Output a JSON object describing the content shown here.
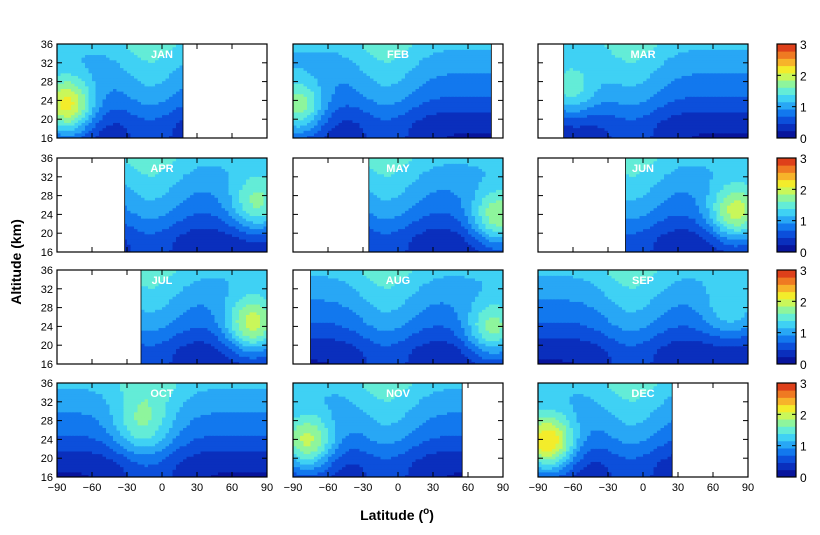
{
  "chart_data": {
    "type": "heatmap",
    "title": "",
    "xlabel": "Latitude (o)",
    "ylabel": "Altitude (km)",
    "x_ticks": [
      "−90",
      "−60",
      "−30",
      "0",
      "30",
      "60",
      "90"
    ],
    "y_ticks": [
      "16",
      "20",
      "24",
      "28",
      "32",
      "36"
    ],
    "xlim": [
      -90,
      90
    ],
    "ylim": [
      16,
      36
    ],
    "colorbar": {
      "ticks": [
        "0",
        "1",
        "2",
        "3"
      ],
      "range": [
        0,
        3
      ],
      "colors": [
        "#08159c",
        "#0a2fbd",
        "#0c4fdb",
        "#1278ee",
        "#28a7f5",
        "#3fd1f4",
        "#63ecd7",
        "#8ef59c",
        "#c9f75a",
        "#f3ec2b",
        "#f7b32a",
        "#ef7a22",
        "#de401a"
      ]
    },
    "panels": [
      {
        "month": "JAN",
        "lat_range": [
          -90,
          18
        ],
        "hot_lat": -82,
        "hot_alt": 22.5,
        "peak": 2.6
      },
      {
        "month": "FEB",
        "lat_range": [
          -90,
          80
        ],
        "hot_lat": -86,
        "hot_alt": 22.0,
        "peak": 2.2
      },
      {
        "month": "MAR",
        "lat_range": [
          -68,
          90
        ],
        "hot_lat": -62,
        "hot_alt": 26.0,
        "peak": 1.7
      },
      {
        "month": "APR",
        "lat_range": [
          -32,
          90
        ],
        "hot_lat": 82,
        "hot_alt": 26.0,
        "peak": 1.9
      },
      {
        "month": "MAY",
        "lat_range": [
          -25,
          90
        ],
        "hot_lat": 86,
        "hot_alt": 23.0,
        "peak": 2.2
      },
      {
        "month": "JUN",
        "lat_range": [
          -15,
          90
        ],
        "hot_lat": 80,
        "hot_alt": 24.0,
        "peak": 2.3
      },
      {
        "month": "JUL",
        "lat_range": [
          -18,
          90
        ],
        "hot_lat": 78,
        "hot_alt": 24.0,
        "peak": 2.3
      },
      {
        "month": "AUG",
        "lat_range": [
          -75,
          90
        ],
        "hot_lat": 82,
        "hot_alt": 23.0,
        "peak": 2.1
      },
      {
        "month": "SEP",
        "lat_range": [
          -90,
          90
        ],
        "hot_lat": 75,
        "hot_alt": 27.0,
        "peak": 1.5
      },
      {
        "month": "OCT",
        "lat_range": [
          -90,
          90
        ],
        "hot_lat": -20,
        "hot_alt": 27.0,
        "peak": 1.5
      },
      {
        "month": "NOV",
        "lat_range": [
          -90,
          55
        ],
        "hot_lat": -78,
        "hot_alt": 23.0,
        "peak": 2.3
      },
      {
        "month": "DEC",
        "lat_range": [
          -90,
          25
        ],
        "hot_lat": -82,
        "hot_alt": 23.0,
        "peak": 2.7
      }
    ]
  }
}
